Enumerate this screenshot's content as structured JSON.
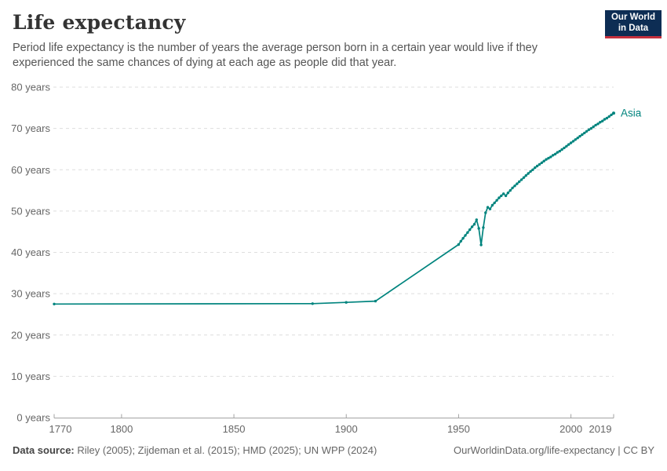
{
  "header": {
    "title": "Life expectancy",
    "subtitle": "Period life expectancy is the number of years the average person born in a certain year would live if they experienced the same chances of dying at each age as people did that year."
  },
  "logo": {
    "line1": "Our World",
    "line2": "in Data",
    "bg_color": "#0d2d54",
    "accent_color": "#c5303e"
  },
  "footer": {
    "source_label": "Data source:",
    "source_text": " Riley (2005); Zijdeman et al. (2015); HMD (2025); UN WPP (2024)",
    "link_text": "OurWorldinData.org/life-expectancy | CC BY"
  },
  "chart_data": {
    "type": "line",
    "title": "Life expectancy",
    "entity_label": "Asia",
    "line_color": "#00847e",
    "grid_color": "#dedede",
    "axis_color": "#a3a3a3",
    "tick_text_color": "#666666",
    "grid": "horizontal dashed",
    "legend_position": "end-of-line label",
    "xlabel": "",
    "ylabel": "",
    "xlim": [
      1770,
      2019
    ],
    "ylim": [
      0,
      80
    ],
    "yticks": [
      {
        "value": 0,
        "label": "0 years"
      },
      {
        "value": 10,
        "label": "10 years"
      },
      {
        "value": 20,
        "label": "20 years"
      },
      {
        "value": 30,
        "label": "30 years"
      },
      {
        "value": 40,
        "label": "40 years"
      },
      {
        "value": 50,
        "label": "50 years"
      },
      {
        "value": 60,
        "label": "60 years"
      },
      {
        "value": 70,
        "label": "70 years"
      },
      {
        "value": 80,
        "label": "80 years"
      }
    ],
    "xticks": [
      {
        "value": 1770,
        "label": "1770"
      },
      {
        "value": 1800,
        "label": "1800"
      },
      {
        "value": 1850,
        "label": "1850"
      },
      {
        "value": 1900,
        "label": "1900"
      },
      {
        "value": 1950,
        "label": "1950"
      },
      {
        "value": 2000,
        "label": "2000"
      },
      {
        "value": 2019,
        "label": "2019"
      }
    ],
    "series": [
      {
        "name": "Asia",
        "points": [
          [
            1770,
            27.5
          ],
          [
            1885,
            27.6
          ],
          [
            1900,
            27.9
          ],
          [
            1913,
            28.2
          ],
          [
            1950,
            41.9
          ],
          [
            1951,
            42.7
          ],
          [
            1952,
            43.4
          ],
          [
            1953,
            44.1
          ],
          [
            1954,
            44.8
          ],
          [
            1955,
            45.5
          ],
          [
            1956,
            46.2
          ],
          [
            1957,
            46.8
          ],
          [
            1958,
            47.9
          ],
          [
            1959,
            45.8
          ],
          [
            1960,
            41.8
          ],
          [
            1961,
            46.0
          ],
          [
            1962,
            49.6
          ],
          [
            1963,
            50.9
          ],
          [
            1964,
            50.5
          ],
          [
            1965,
            51.4
          ],
          [
            1966,
            52.0
          ],
          [
            1967,
            52.6
          ],
          [
            1968,
            53.2
          ],
          [
            1969,
            53.7
          ],
          [
            1970,
            54.2
          ],
          [
            1971,
            53.7
          ],
          [
            1972,
            54.4
          ],
          [
            1973,
            55.0
          ],
          [
            1974,
            55.6
          ],
          [
            1975,
            56.1
          ],
          [
            1976,
            56.6
          ],
          [
            1977,
            57.1
          ],
          [
            1978,
            57.6
          ],
          [
            1979,
            58.1
          ],
          [
            1980,
            58.6
          ],
          [
            1981,
            59.1
          ],
          [
            1982,
            59.6
          ],
          [
            1983,
            60.0
          ],
          [
            1984,
            60.5
          ],
          [
            1985,
            60.9
          ],
          [
            1986,
            61.3
          ],
          [
            1987,
            61.7
          ],
          [
            1988,
            62.1
          ],
          [
            1989,
            62.5
          ],
          [
            1990,
            62.8
          ],
          [
            1991,
            63.1
          ],
          [
            1992,
            63.5
          ],
          [
            1993,
            63.8
          ],
          [
            1994,
            64.2
          ],
          [
            1995,
            64.5
          ],
          [
            1996,
            64.9
          ],
          [
            1997,
            65.3
          ],
          [
            1998,
            65.7
          ],
          [
            1999,
            66.1
          ],
          [
            2000,
            66.5
          ],
          [
            2001,
            66.9
          ],
          [
            2002,
            67.3
          ],
          [
            2003,
            67.7
          ],
          [
            2004,
            68.1
          ],
          [
            2005,
            68.5
          ],
          [
            2006,
            68.9
          ],
          [
            2007,
            69.3
          ],
          [
            2008,
            69.7
          ],
          [
            2009,
            70.0
          ],
          [
            2010,
            70.4
          ],
          [
            2011,
            70.8
          ],
          [
            2012,
            71.1
          ],
          [
            2013,
            71.5
          ],
          [
            2014,
            71.8
          ],
          [
            2015,
            72.2
          ],
          [
            2016,
            72.5
          ],
          [
            2017,
            72.9
          ],
          [
            2018,
            73.3
          ],
          [
            2019,
            73.7
          ]
        ]
      }
    ]
  }
}
